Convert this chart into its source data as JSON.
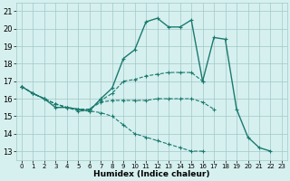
{
  "xlabel": "Humidex (Indice chaleur)",
  "background_color": "#d6f0ef",
  "grid_color": "#a0c8c8",
  "line_color": "#1a7a6e",
  "xlim": [
    -0.5,
    23.5
  ],
  "ylim": [
    12.5,
    21.5
  ],
  "xticks": [
    0,
    1,
    2,
    3,
    4,
    5,
    6,
    7,
    8,
    9,
    10,
    11,
    12,
    13,
    14,
    15,
    16,
    17,
    18,
    19,
    20,
    21,
    22,
    23
  ],
  "yticks": [
    13,
    14,
    15,
    16,
    17,
    18,
    19,
    20,
    21
  ],
  "series": [
    {
      "x": [
        0,
        1,
        2,
        3,
        4,
        5,
        6,
        7,
        8,
        9,
        10,
        11,
        12,
        13,
        14,
        15,
        16,
        17,
        18,
        19,
        20,
        21,
        22
      ],
      "y": [
        16.7,
        16.3,
        16.0,
        15.5,
        15.5,
        15.4,
        15.3,
        16.0,
        16.6,
        18.3,
        18.8,
        20.4,
        20.6,
        20.1,
        20.1,
        20.5,
        17.0,
        19.5,
        19.4,
        15.4,
        13.8,
        13.2,
        13.0
      ],
      "linestyle": "-",
      "linewidth": 1.0
    },
    {
      "x": [
        0,
        1,
        2,
        3,
        4,
        5,
        6,
        7,
        8,
        9,
        10,
        11,
        12,
        13,
        14,
        15,
        16
      ],
      "y": [
        16.7,
        16.3,
        16.0,
        15.7,
        15.5,
        15.4,
        15.4,
        15.9,
        16.3,
        17.0,
        17.1,
        17.3,
        17.4,
        17.5,
        17.5,
        17.5,
        17.0
      ],
      "linestyle": "--",
      "linewidth": 0.8
    },
    {
      "x": [
        0,
        1,
        2,
        3,
        4,
        5,
        6,
        7,
        8,
        9,
        10,
        11,
        12,
        13,
        14,
        15,
        16,
        17
      ],
      "y": [
        16.7,
        16.3,
        16.0,
        15.7,
        15.5,
        15.4,
        15.4,
        15.8,
        15.9,
        15.9,
        15.9,
        15.9,
        16.0,
        16.0,
        16.0,
        16.0,
        15.8,
        15.4
      ],
      "linestyle": "--",
      "linewidth": 0.8
    },
    {
      "x": [
        0,
        1,
        2,
        3,
        4,
        5,
        6,
        7,
        8,
        9,
        10,
        11,
        12,
        13,
        14,
        15,
        16
      ],
      "y": [
        16.7,
        16.3,
        16.0,
        15.7,
        15.5,
        15.3,
        15.3,
        15.2,
        15.0,
        14.5,
        14.0,
        13.8,
        13.6,
        13.4,
        13.2,
        13.0,
        13.0
      ],
      "linestyle": "--",
      "linewidth": 0.8
    }
  ]
}
